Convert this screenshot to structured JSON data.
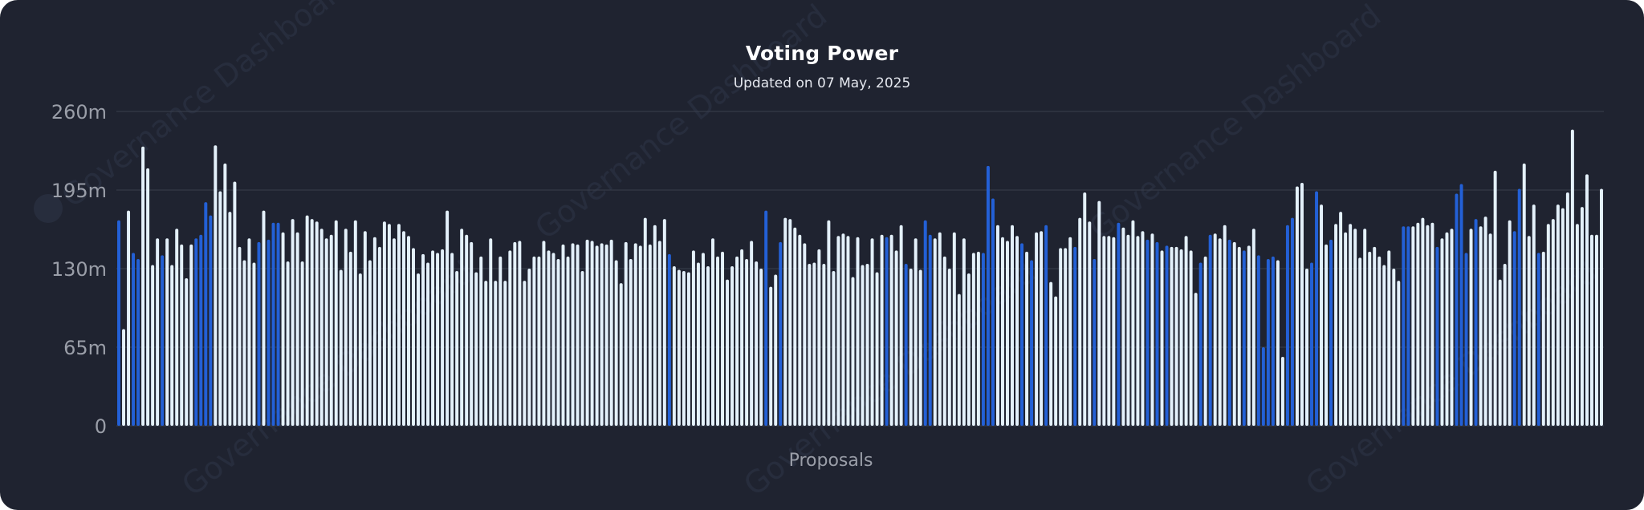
{
  "title": "Voting Power",
  "subtitle": "Updated on 07 May, 2025",
  "watermark": "Governance Dashboard",
  "colors": {
    "background": "#1f2330",
    "grid": "#3a3f4d",
    "axis_text": "#9a9ea8",
    "bar_blue": "#2360d6",
    "bar_white": "#e4f1fb"
  },
  "chart_data": {
    "type": "bar",
    "title": "Voting Power",
    "subtitle": "Updated on 07 May, 2025",
    "xlabel": "Proposals",
    "ylabel": "",
    "ylim": [
      0,
      260000000
    ],
    "yticks": [
      0,
      65000000,
      130000000,
      195000000,
      260000000
    ],
    "ytick_labels": [
      "0",
      "65m",
      "130m",
      "195m",
      "260m"
    ],
    "grid": true,
    "legend": "none",
    "values_m": [
      170,
      80,
      178,
      143,
      138,
      231,
      213,
      133,
      155,
      141,
      155,
      133,
      163,
      150,
      122,
      150,
      155,
      158,
      185,
      174,
      232,
      194,
      217,
      177,
      202,
      148,
      137,
      155,
      135,
      152,
      178,
      154,
      168,
      168,
      160,
      136,
      171,
      160,
      136,
      174,
      171,
      169,
      163,
      155,
      158,
      170,
      129,
      163,
      144,
      170,
      126,
      161,
      137,
      156,
      148,
      169,
      167,
      155,
      167,
      161,
      157,
      147,
      126,
      142,
      135,
      145,
      143,
      146,
      178,
      143,
      128,
      163,
      158,
      152,
      127,
      140,
      120,
      155,
      120,
      140,
      120,
      145,
      152,
      153,
      120,
      130,
      140,
      140,
      153,
      145,
      143,
      138,
      150,
      140,
      151,
      150,
      128,
      154,
      153,
      149,
      151,
      150,
      154,
      137,
      118,
      152,
      138,
      151,
      149,
      172,
      150,
      166,
      153,
      171,
      142,
      132,
      129,
      128,
      127,
      145,
      135,
      143,
      132,
      155,
      140,
      144,
      121,
      132,
      140,
      146,
      138,
      153,
      136,
      130,
      178,
      115,
      125,
      152,
      172,
      171,
      164,
      158,
      151,
      134,
      135,
      146,
      134,
      170,
      128,
      157,
      159,
      157,
      123,
      156,
      133,
      134,
      155,
      127,
      158,
      156,
      158,
      145,
      166,
      134,
      130,
      155,
      129,
      170,
      158,
      155,
      160,
      140,
      130,
      160,
      109,
      155,
      126,
      143,
      144,
      143,
      215,
      188,
      166,
      156,
      153,
      166,
      157,
      151,
      144,
      137,
      160,
      161,
      166,
      119,
      107,
      147,
      147,
      156,
      148,
      172,
      193,
      169,
      138,
      186,
      157,
      157,
      156,
      168,
      164,
      158,
      170,
      157,
      161,
      154,
      159,
      152,
      145,
      149,
      148,
      148,
      146,
      157,
      145,
      110,
      135,
      140,
      158,
      159,
      155,
      166,
      154,
      152,
      148,
      145,
      149,
      163,
      141,
      65,
      138,
      140,
      137,
      57,
      166,
      172,
      198,
      201,
      130,
      135,
      194,
      183,
      150,
      154,
      167,
      177,
      160,
      167,
      163,
      139,
      163,
      144,
      148,
      140,
      133,
      145,
      130,
      120,
      165,
      165,
      165,
      168,
      172,
      166,
      168,
      148,
      155,
      160,
      163,
      192,
      200,
      143,
      163,
      171,
      165,
      173,
      159,
      211,
      121,
      134,
      170,
      161,
      196,
      217,
      157,
      183,
      143,
      144,
      167,
      171,
      183,
      180,
      193,
      245,
      167,
      181,
      208,
      158,
      158,
      196
    ],
    "colors_seq": [
      "b",
      "w",
      "w",
      "b",
      "b",
      "w",
      "w",
      "w",
      "w",
      "b",
      "w",
      "w",
      "w",
      "w",
      "w",
      "w",
      "b",
      "b",
      "b",
      "b",
      "w",
      "w",
      "w",
      "w",
      "w",
      "w",
      "w",
      "w",
      "w",
      "b",
      "w",
      "b",
      "b",
      "b",
      "w",
      "w",
      "w",
      "w",
      "w",
      "w",
      "w",
      "w",
      "w",
      "w",
      "w",
      "w",
      "w",
      "w",
      "w",
      "w",
      "w",
      "w",
      "w",
      "w",
      "w",
      "w",
      "w",
      "w",
      "w",
      "w",
      "w",
      "w",
      "w",
      "w",
      "w",
      "w",
      "w",
      "w",
      "w",
      "w",
      "w",
      "w",
      "w",
      "w",
      "w",
      "w",
      "w",
      "w",
      "w",
      "w",
      "w",
      "w",
      "w",
      "w",
      "w",
      "w",
      "w",
      "w",
      "w",
      "w",
      "w",
      "w",
      "w",
      "w",
      "w",
      "w",
      "w",
      "w",
      "w",
      "w",
      "w",
      "w",
      "w",
      "w",
      "w",
      "w",
      "w",
      "w",
      "w",
      "w",
      "w",
      "w",
      "w",
      "w",
      "b",
      "w",
      "w",
      "w",
      "w",
      "w",
      "w",
      "w",
      "w",
      "w",
      "w",
      "w",
      "w",
      "w",
      "w",
      "w",
      "w",
      "w",
      "w",
      "w",
      "b",
      "w",
      "w",
      "b",
      "w",
      "w",
      "w",
      "w",
      "w",
      "w",
      "w",
      "w",
      "w",
      "w",
      "w",
      "w",
      "w",
      "w",
      "w",
      "w",
      "w",
      "w",
      "w",
      "w",
      "w",
      "b",
      "w",
      "w",
      "w",
      "b",
      "w",
      "w",
      "w",
      "b",
      "b",
      "w",
      "w",
      "w",
      "w",
      "w",
      "w",
      "w",
      "w",
      "w",
      "w",
      "b",
      "b",
      "b",
      "w",
      "w",
      "w",
      "w",
      "w",
      "b",
      "w",
      "b",
      "w",
      "w",
      "b",
      "w",
      "w",
      "w",
      "w",
      "w",
      "b",
      "w",
      "w",
      "w",
      "b",
      "w",
      "w",
      "w",
      "w",
      "b",
      "w",
      "w",
      "w",
      "w",
      "w",
      "b",
      "w",
      "b",
      "w",
      "b",
      "w",
      "w",
      "w",
      "w",
      "w",
      "w",
      "b",
      "w",
      "b",
      "w",
      "w",
      "w",
      "b",
      "w",
      "w",
      "b",
      "w",
      "w",
      "b",
      "b",
      "b",
      "b",
      "w",
      "w",
      "b",
      "b",
      "w",
      "w",
      "w",
      "b",
      "b",
      "w",
      "w",
      "b",
      "w",
      "w",
      "w",
      "w",
      "w",
      "w",
      "w",
      "w",
      "w",
      "w",
      "w",
      "w",
      "w",
      "w",
      "b",
      "b",
      "w",
      "w",
      "w",
      "w",
      "w",
      "b",
      "w",
      "w",
      "w",
      "b",
      "b",
      "b",
      "w",
      "b",
      "w",
      "w",
      "w",
      "w",
      "w",
      "w",
      "w",
      "b",
      "b",
      "w",
      "w",
      "w",
      "b"
    ]
  }
}
